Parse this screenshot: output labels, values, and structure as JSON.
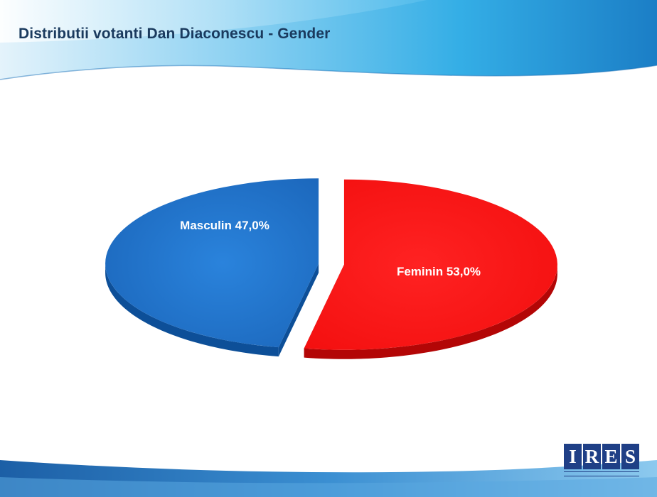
{
  "slide": {
    "title": "Distributii votanti Dan Diaconescu - Gender"
  },
  "logo": {
    "letters": [
      "I",
      "R",
      "E",
      "S"
    ]
  },
  "colors": {
    "accent_blue": "#1d5aa0",
    "band_blue": "#3aaee5",
    "masculin_slice": "#1f6fc6",
    "feminin_slice": "#ff1a1a",
    "title_text": "#1a3a5e"
  },
  "chart_data": {
    "type": "pie",
    "title": "",
    "exploded": true,
    "style": "3d",
    "slices": [
      {
        "label": "Masculin 47,0%",
        "name": "Masculin",
        "value": 47.0,
        "color": "#1f6fc6"
      },
      {
        "label": "Feminin 53,0%",
        "name": "Feminin",
        "value": 53.0,
        "color": "#ff1a1a"
      }
    ]
  }
}
